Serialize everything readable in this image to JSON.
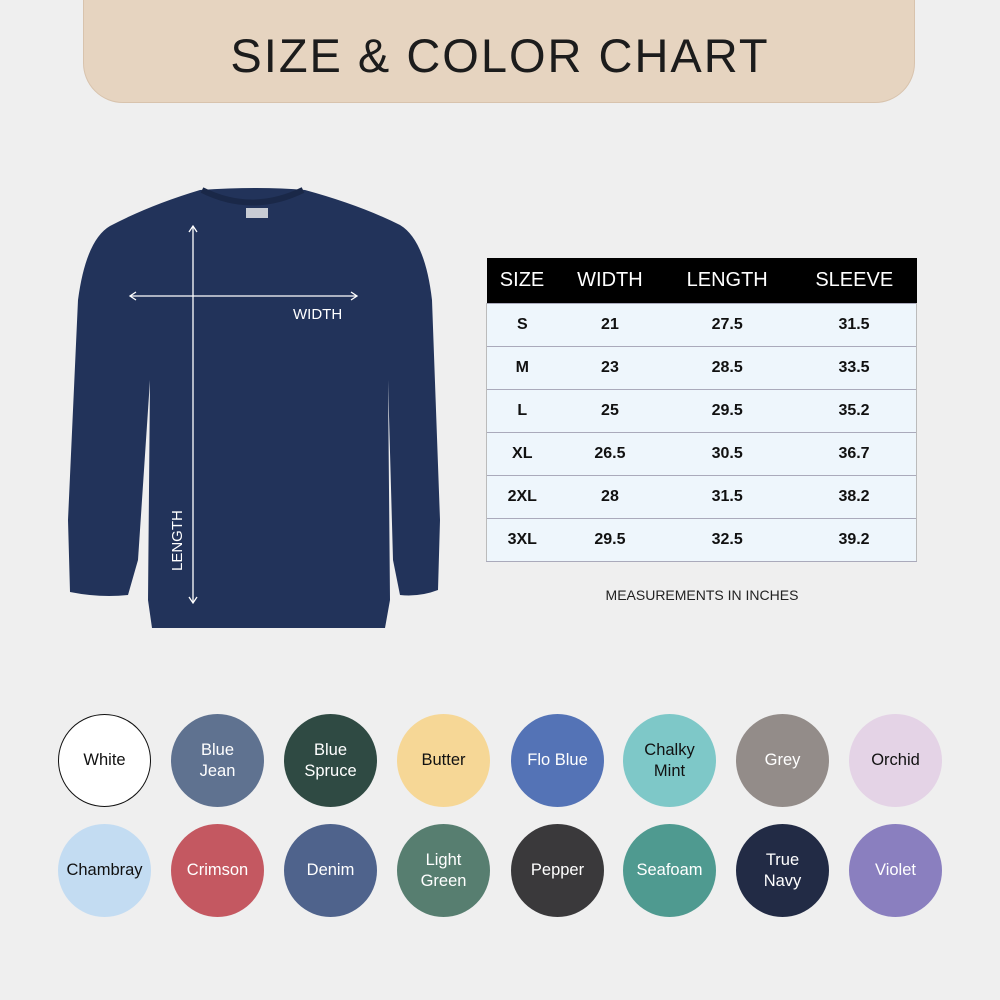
{
  "header": {
    "title": "SIZE & COLOR CHART"
  },
  "garment": {
    "color": "#22335a",
    "width_label": "WIDTH",
    "length_label": "LENGTH"
  },
  "size_table": {
    "headers": [
      "SIZE",
      "WIDTH",
      "LENGTH",
      "SLEEVE"
    ],
    "rows": [
      [
        "S",
        "21",
        "27.5",
        "31.5"
      ],
      [
        "M",
        "23",
        "28.5",
        "33.5"
      ],
      [
        "L",
        "25",
        "29.5",
        "35.2"
      ],
      [
        "XL",
        "26.5",
        "30.5",
        "36.7"
      ],
      [
        "2XL",
        "28",
        "31.5",
        "38.2"
      ],
      [
        "3XL",
        "29.5",
        "32.5",
        "39.2"
      ]
    ],
    "note": "MEASUREMENTS IN INCHES"
  },
  "colors": [
    {
      "name": "White",
      "hex": "#ffffff",
      "text": "#111"
    },
    {
      "name": "Blue\nJean",
      "hex": "#5f7290",
      "text": "#fff"
    },
    {
      "name": "Blue\nSpruce",
      "hex": "#2f4a43",
      "text": "#fff"
    },
    {
      "name": "Butter",
      "hex": "#f6d796",
      "text": "#111"
    },
    {
      "name": "Flo Blue",
      "hex": "#5473b6",
      "text": "#fff"
    },
    {
      "name": "Chalky\nMint",
      "hex": "#7ec8c8",
      "text": "#111"
    },
    {
      "name": "Grey",
      "hex": "#938c89",
      "text": "#fff"
    },
    {
      "name": "Orchid",
      "hex": "#e4d3e6",
      "text": "#111"
    },
    {
      "name": "Chambray",
      "hex": "#c3dcf2",
      "text": "#111"
    },
    {
      "name": "Crimson",
      "hex": "#c45861",
      "text": "#fff"
    },
    {
      "name": "Denim",
      "hex": "#4f638c",
      "text": "#fff"
    },
    {
      "name": "Light\nGreen",
      "hex": "#577e70",
      "text": "#fff"
    },
    {
      "name": "Pepper",
      "hex": "#3a393b",
      "text": "#fff"
    },
    {
      "name": "Seafoam",
      "hex": "#4f9a90",
      "text": "#fff"
    },
    {
      "name": "True\nNavy",
      "hex": "#222b45",
      "text": "#fff"
    },
    {
      "name": "Violet",
      "hex": "#8a7fbf",
      "text": "#fff"
    }
  ]
}
